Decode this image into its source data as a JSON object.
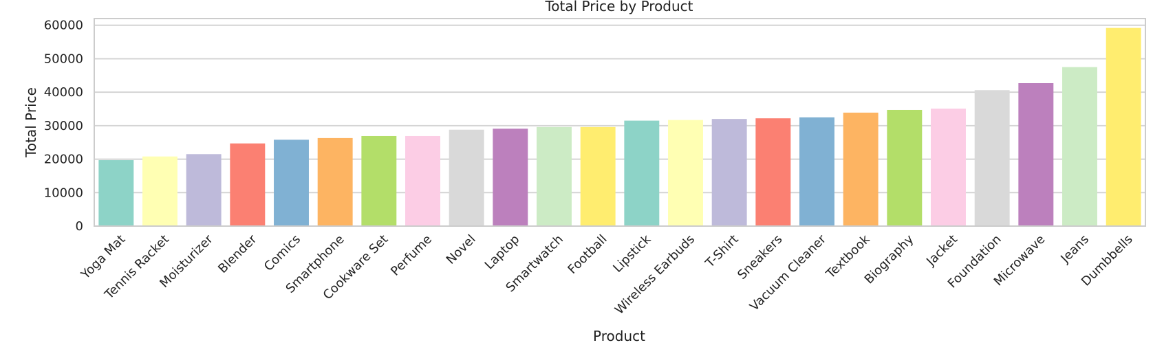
{
  "chart_data": {
    "type": "bar",
    "title": "Total Price by Product",
    "xlabel": "Product",
    "ylabel": "Total Price",
    "ylim": [
      0,
      62000
    ],
    "yticks": [
      0,
      10000,
      20000,
      30000,
      40000,
      50000,
      60000
    ],
    "grid": true,
    "categories": [
      "Yoga Mat",
      "Tennis Racket",
      "Moisturizer",
      "Blender",
      "Comics",
      "Smartphone",
      "Cookware Set",
      "Perfume",
      "Novel",
      "Laptop",
      "Smartwatch",
      "Football",
      "Lipstick",
      "Wireless Earbuds",
      "T-Shirt",
      "Sneakers",
      "Vacuum Cleaner",
      "Textbook",
      "Biography",
      "Jacket",
      "Foundation",
      "Microwave",
      "Jeans",
      "Dumbbells"
    ],
    "values": [
      19700,
      20800,
      21500,
      24700,
      25800,
      26300,
      26900,
      26900,
      28800,
      29100,
      29600,
      29600,
      31500,
      31700,
      32000,
      32200,
      32500,
      33900,
      34700,
      35100,
      40600,
      42700,
      47500,
      59200
    ],
    "colors": [
      "#8dd3c7",
      "#ffffb3",
      "#bebada",
      "#fb8072",
      "#80b1d3",
      "#fdb462",
      "#b3de69",
      "#fccde5",
      "#d9d9d9",
      "#bc80bd",
      "#ccebc5",
      "#ffed6f",
      "#8dd3c7",
      "#ffffb3",
      "#bebada",
      "#fb8072",
      "#80b1d3",
      "#fdb462",
      "#b3de69",
      "#fccde5",
      "#d9d9d9",
      "#bc80bd",
      "#ccebc5",
      "#ffed6f"
    ]
  }
}
